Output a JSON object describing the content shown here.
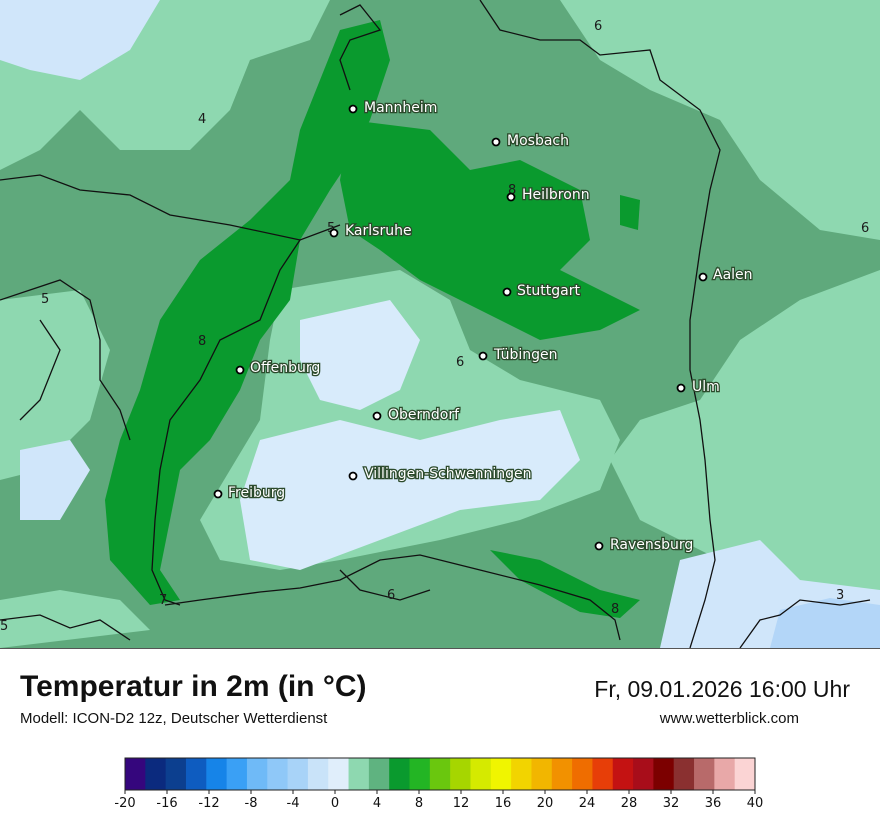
{
  "title": "Temperatur in 2m (in °C)",
  "model": "Modell: ICON-D2 12z, Deutscher Wetterdienst",
  "datetime": "Fr, 09.01.2026 16:00 Uhr",
  "website": "www.wetterblick.com",
  "cities": [
    {
      "name": "Mannheim"
    },
    {
      "name": "Mosbach"
    },
    {
      "name": "Heilbronn"
    },
    {
      "name": "Karlsruhe"
    },
    {
      "name": "Aalen"
    },
    {
      "name": "Stuttgart"
    },
    {
      "name": "Tübingen"
    },
    {
      "name": "Offenburg"
    },
    {
      "name": "Ulm"
    },
    {
      "name": "Oberndorf"
    },
    {
      "name": "Villingen-Schwenningen"
    },
    {
      "name": "Freiburg"
    },
    {
      "name": "Ravensburg"
    }
  ],
  "isolines": [
    "6",
    "4",
    "8",
    "6",
    "5",
    "8",
    "6",
    "5",
    "7",
    "6",
    "8",
    "3",
    "5"
  ],
  "legend": {
    "colors": [
      "#35067d",
      "#0b2a7e",
      "#0c3f8f",
      "#0e5cc0",
      "#1684e8",
      "#3aa0f5",
      "#6fbaf7",
      "#8fc8f8",
      "#a8d3f8",
      "#c9e3f9",
      "#e0eefb",
      "#8ed8b0",
      "#5fb380",
      "#0a9a2e",
      "#23b524",
      "#6ac70e",
      "#a6d600",
      "#d5ea00",
      "#f0f500",
      "#f2d400",
      "#f2b600",
      "#f29100",
      "#ef6d00",
      "#e73e08",
      "#c41212",
      "#a80d1a",
      "#7c0000",
      "#8a3030",
      "#b86a6a",
      "#e8a8a8",
      "#fbd4d4"
    ],
    "ticks": [
      "-20",
      "-16",
      "-12",
      "-8",
      "-4",
      "0",
      "4",
      "8",
      "12",
      "16",
      "20",
      "24",
      "28",
      "32",
      "36",
      "40"
    ]
  }
}
